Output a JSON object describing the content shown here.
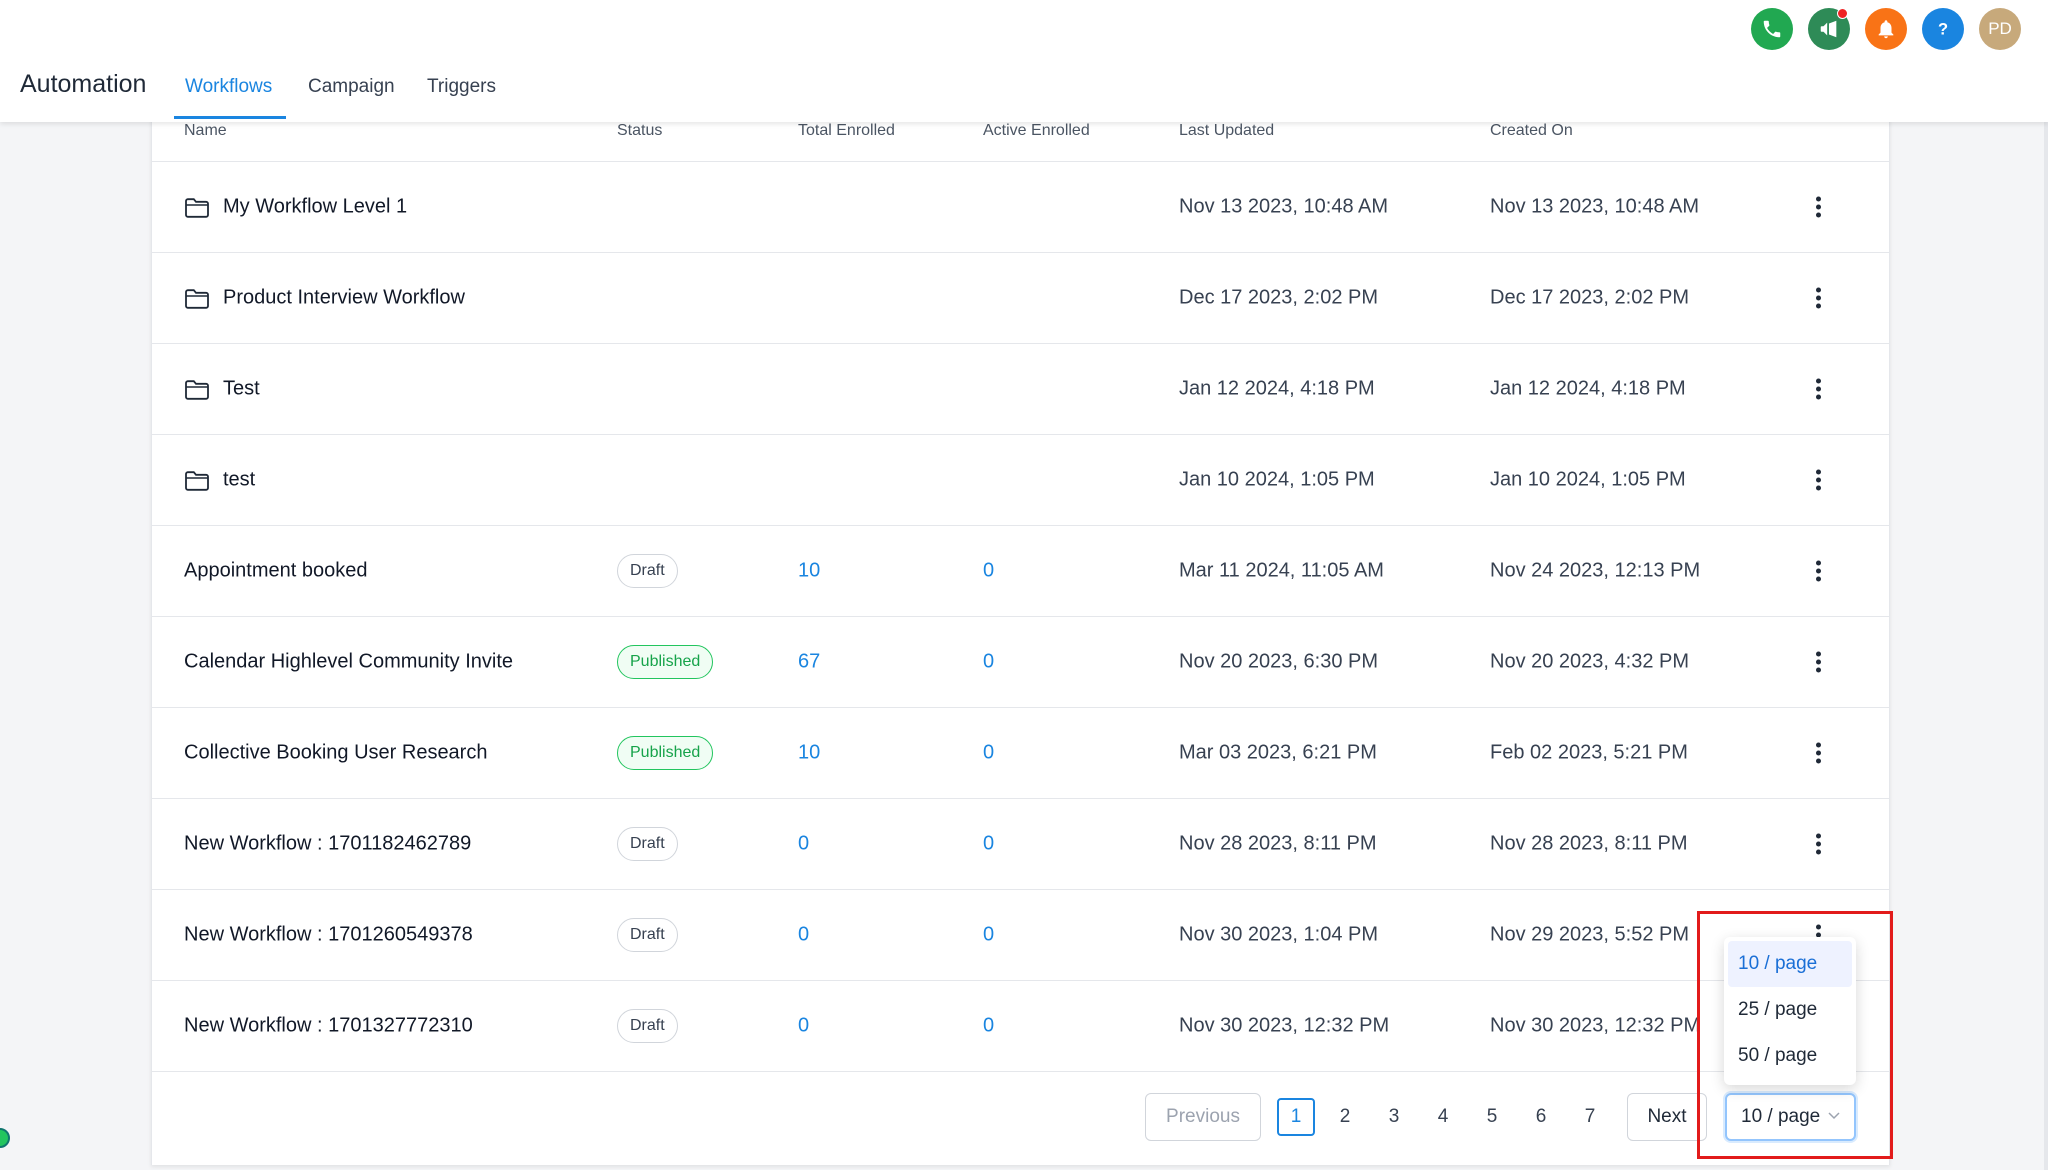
{
  "header": {
    "app_title": "Automation",
    "tabs": [
      {
        "label": "Workflows",
        "active": true
      },
      {
        "label": "Campaign",
        "active": false
      },
      {
        "label": "Triggers",
        "active": false
      }
    ],
    "icons": [
      {
        "name": "phone-icon",
        "color": "#21a851"
      },
      {
        "name": "megaphone-icon",
        "color": "#2e8b57",
        "has_notification": true
      },
      {
        "name": "bell-icon",
        "color": "#f97316"
      },
      {
        "name": "help-icon",
        "color": "#1a85e0"
      }
    ],
    "avatar": {
      "initials": "PD",
      "color": "#c7a97b"
    }
  },
  "table": {
    "columns": [
      "Name",
      "Status",
      "Total Enrolled",
      "Active Enrolled",
      "Last Updated",
      "Created On"
    ],
    "rows": [
      {
        "type": "folder",
        "name": "My Workflow Level 1",
        "status": "",
        "total": "",
        "active": "",
        "updated": "Nov 13 2023, 10:48 AM",
        "created": "Nov 13 2023, 10:48 AM"
      },
      {
        "type": "folder",
        "name": "Product Interview Workflow",
        "status": "",
        "total": "",
        "active": "",
        "updated": "Dec 17 2023, 2:02 PM",
        "created": "Dec 17 2023, 2:02 PM"
      },
      {
        "type": "folder",
        "name": "Test",
        "status": "",
        "total": "",
        "active": "",
        "updated": "Jan 12 2024, 4:18 PM",
        "created": "Jan 12 2024, 4:18 PM"
      },
      {
        "type": "folder",
        "name": "test",
        "status": "",
        "total": "",
        "active": "",
        "updated": "Jan 10 2024, 1:05 PM",
        "created": "Jan 10 2024, 1:05 PM"
      },
      {
        "type": "workflow",
        "name": "Appointment booked",
        "status": "Draft",
        "total": "10",
        "active": "0",
        "updated": "Mar 11 2024, 11:05 AM",
        "created": "Nov 24 2023, 12:13 PM"
      },
      {
        "type": "workflow",
        "name": "Calendar Highlevel Community Invite",
        "status": "Published",
        "total": "67",
        "active": "0",
        "updated": "Nov 20 2023, 6:30 PM",
        "created": "Nov 20 2023, 4:32 PM"
      },
      {
        "type": "workflow",
        "name": "Collective Booking User Research",
        "status": "Published",
        "total": "10",
        "active": "0",
        "updated": "Mar 03 2023, 6:21 PM",
        "created": "Feb 02 2023, 5:21 PM"
      },
      {
        "type": "workflow",
        "name": "New Workflow : 1701182462789",
        "status": "Draft",
        "total": "0",
        "active": "0",
        "updated": "Nov 28 2023, 8:11 PM",
        "created": "Nov 28 2023, 8:11 PM"
      },
      {
        "type": "workflow",
        "name": "New Workflow : 1701260549378",
        "status": "Draft",
        "total": "0",
        "active": "0",
        "updated": "Nov 30 2023, 1:04 PM",
        "created": "Nov 29 2023, 5:52 PM"
      },
      {
        "type": "workflow",
        "name": "New Workflow : 1701327772310",
        "status": "Draft",
        "total": "0",
        "active": "0",
        "updated": "Nov 30 2023, 12:32 PM",
        "created": "Nov 30 2023, 12:32 PM"
      }
    ]
  },
  "pagination": {
    "previous_label": "Previous",
    "next_label": "Next",
    "pages": [
      "1",
      "2",
      "3",
      "4",
      "5",
      "6",
      "7"
    ],
    "current_page": "1",
    "page_size_selected": "10 / page",
    "page_size_options": [
      "10 / page",
      "25 / page",
      "50 / page"
    ]
  },
  "colors": {
    "accent": "#1a85e0",
    "published": "#16a34a",
    "highlight": "#e21b1b"
  }
}
